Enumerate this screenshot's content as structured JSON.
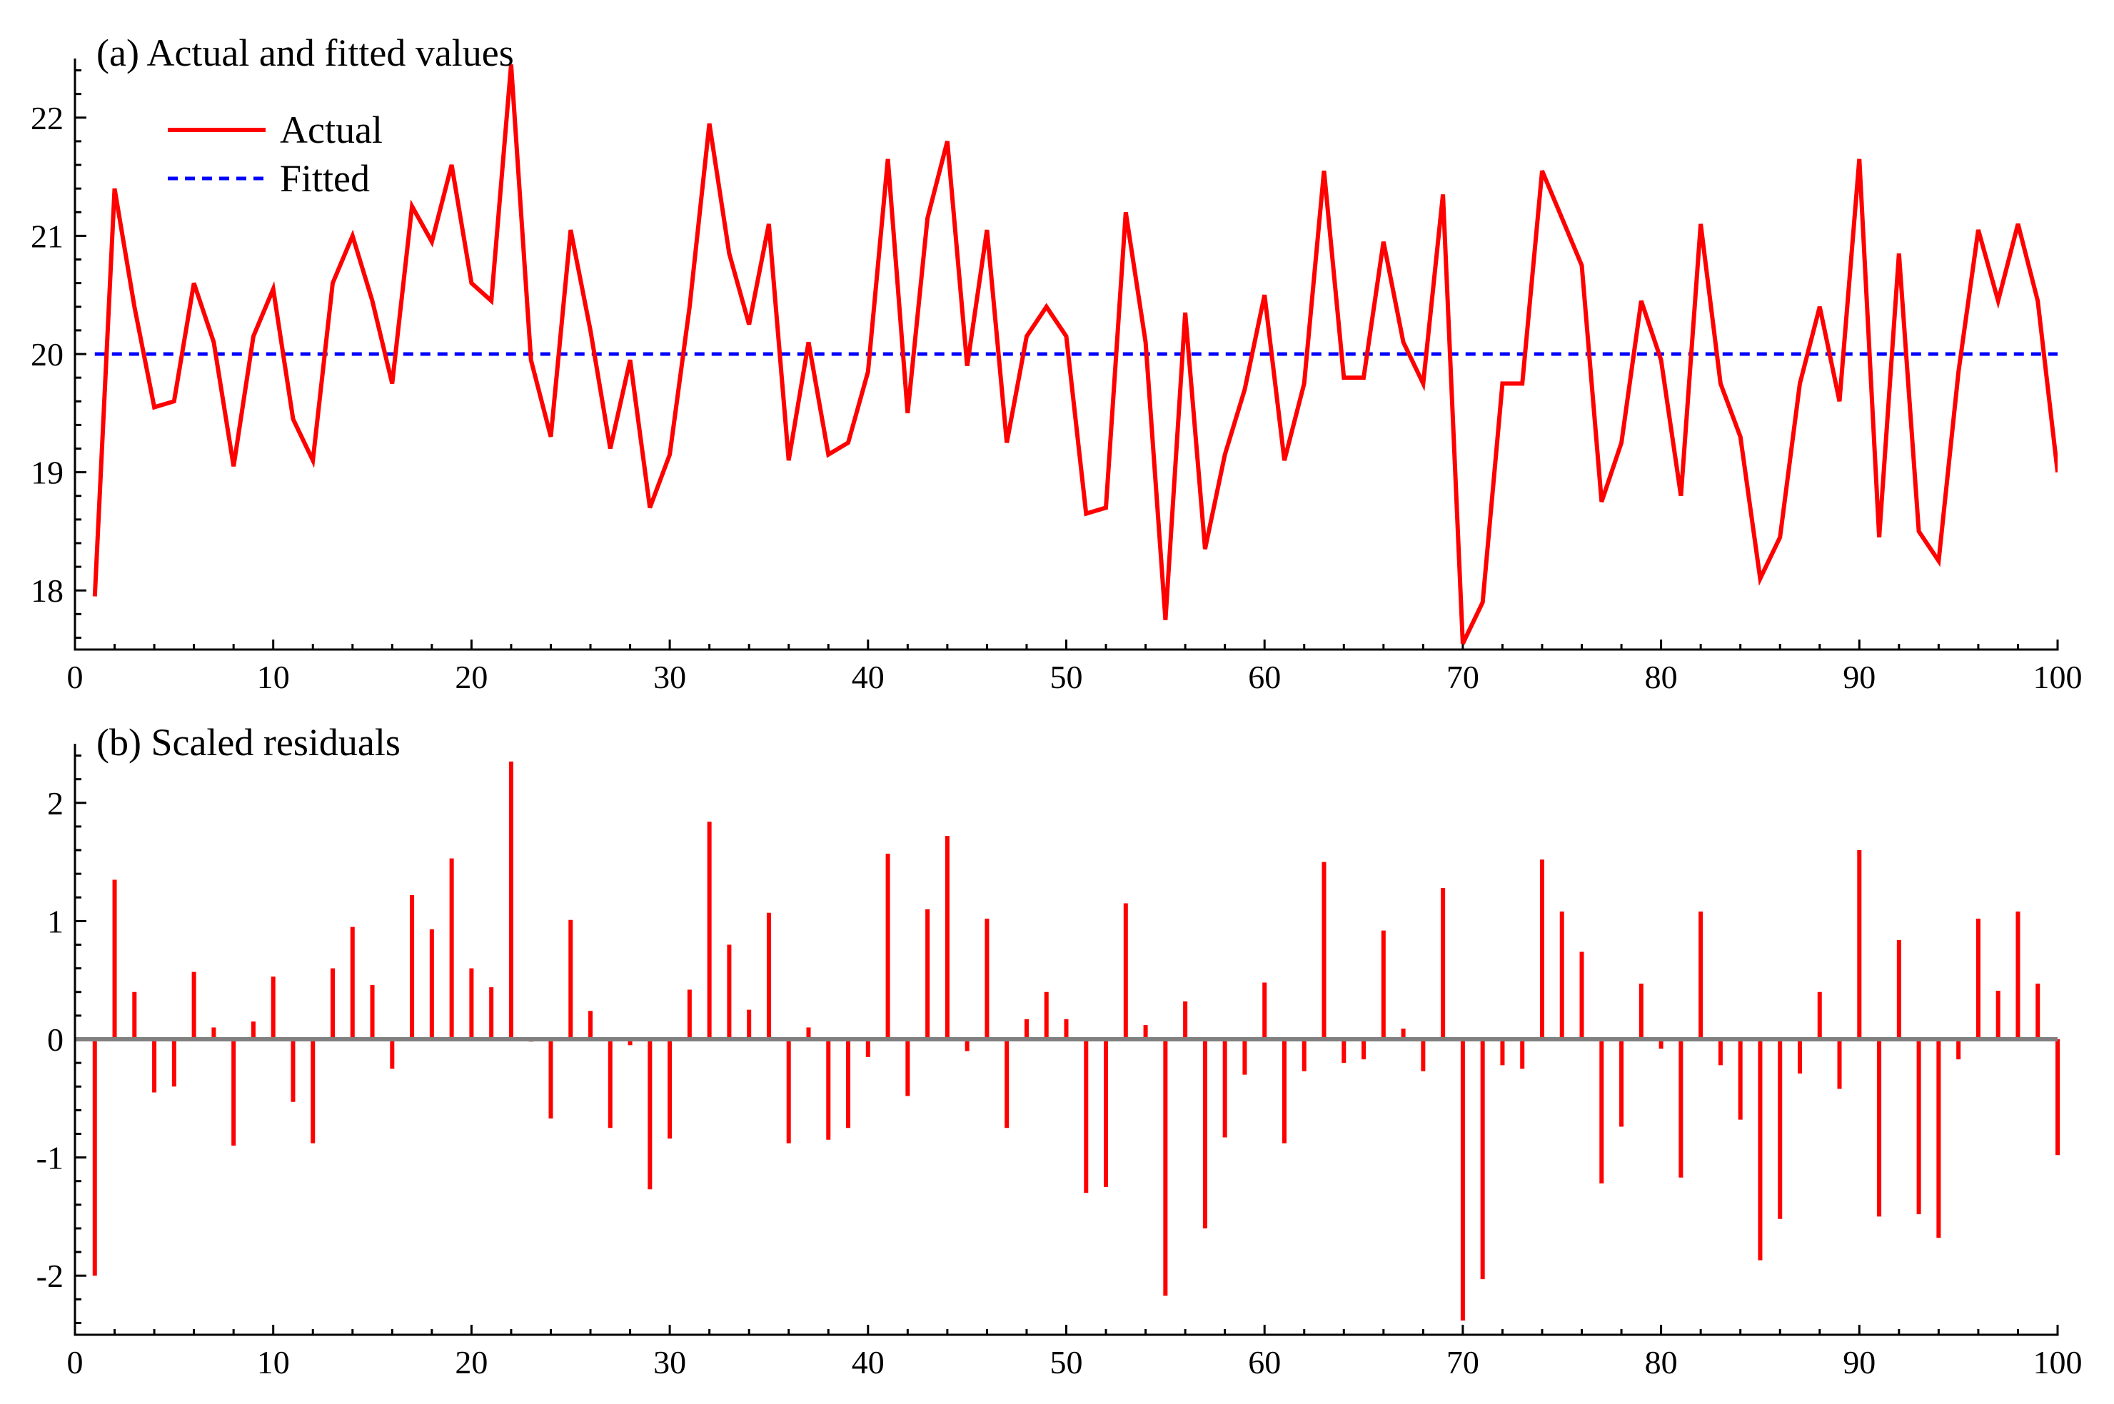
{
  "chart_data": [
    {
      "panel": "a",
      "type": "line",
      "title": "(a) Actual and fitted values",
      "xlabel": "",
      "ylabel": "",
      "xlim": [
        0,
        100
      ],
      "ylim": [
        17.5,
        22.5
      ],
      "xticks": [
        0,
        10,
        20,
        30,
        40,
        50,
        60,
        70,
        80,
        90,
        100
      ],
      "yticks": [
        18,
        19,
        20,
        21,
        22
      ],
      "legend_position": "top-left",
      "series": [
        {
          "name": "Actual",
          "color": "#ff0000",
          "style": "solid",
          "x": [
            1,
            2,
            3,
            4,
            5,
            6,
            7,
            8,
            9,
            10,
            11,
            12,
            13,
            14,
            15,
            16,
            17,
            18,
            19,
            20,
            21,
            22,
            23,
            24,
            25,
            26,
            27,
            28,
            29,
            30,
            31,
            32,
            33,
            34,
            35,
            36,
            37,
            38,
            39,
            40,
            41,
            42,
            43,
            44,
            45,
            46,
            47,
            48,
            49,
            50,
            51,
            52,
            53,
            54,
            55,
            56,
            57,
            58,
            59,
            60,
            61,
            62,
            63,
            64,
            65,
            66,
            67,
            68,
            69,
            70,
            71,
            72,
            73,
            74,
            75,
            76,
            77,
            78,
            79,
            80,
            81,
            82,
            83,
            84,
            85,
            86,
            87,
            88,
            89,
            90,
            91,
            92,
            93,
            94,
            95,
            96,
            97,
            98,
            99,
            100
          ],
          "values": [
            17.95,
            21.4,
            20.4,
            19.55,
            19.6,
            20.6,
            20.1,
            19.05,
            20.15,
            20.55,
            19.45,
            19.1,
            20.6,
            21.0,
            20.45,
            19.75,
            21.25,
            20.95,
            21.6,
            20.6,
            20.45,
            22.45,
            19.95,
            19.3,
            21.05,
            20.2,
            19.2,
            19.95,
            18.7,
            19.15,
            20.4,
            21.95,
            20.85,
            20.25,
            21.1,
            19.1,
            20.1,
            19.15,
            19.25,
            19.85,
            21.65,
            19.5,
            21.15,
            21.8,
            19.9,
            21.05,
            19.25,
            20.15,
            20.4,
            20.15,
            18.65,
            18.7,
            21.2,
            20.1,
            17.75,
            20.35,
            18.35,
            19.15,
            19.7,
            20.5,
            19.1,
            19.75,
            21.55,
            19.8,
            19.8,
            20.95,
            20.1,
            19.75,
            21.35,
            17.55,
            17.9,
            19.75,
            19.75,
            21.55,
            21.15,
            20.75,
            18.75,
            19.25,
            20.45,
            19.95,
            18.8,
            21.1,
            19.75,
            19.3,
            18.1,
            18.45,
            19.75,
            20.4,
            19.6,
            21.65,
            18.45,
            20.85,
            18.5,
            18.25,
            19.85,
            21.05,
            20.45,
            21.1,
            20.45,
            19.0
          ]
        },
        {
          "name": "Fitted",
          "color": "#0000ff",
          "style": "dashed",
          "x": [
            1,
            100
          ],
          "values": [
            20.0,
            20.0
          ]
        }
      ]
    },
    {
      "panel": "b",
      "type": "bar",
      "title": "(b) Scaled residuals",
      "xlabel": "",
      "ylabel": "",
      "xlim": [
        0,
        100
      ],
      "ylim": [
        -2.5,
        2.5
      ],
      "xticks": [
        0,
        10,
        20,
        30,
        40,
        50,
        60,
        70,
        80,
        90,
        100
      ],
      "yticks": [
        -2,
        -1,
        0,
        1,
        2
      ],
      "baseline_color": "#808080",
      "series": [
        {
          "name": "Scaled residuals",
          "color": "#ff0000",
          "x": [
            1,
            2,
            3,
            4,
            5,
            6,
            7,
            8,
            9,
            10,
            11,
            12,
            13,
            14,
            15,
            16,
            17,
            18,
            19,
            20,
            21,
            22,
            23,
            24,
            25,
            26,
            27,
            28,
            29,
            30,
            31,
            32,
            33,
            34,
            35,
            36,
            37,
            38,
            39,
            40,
            41,
            42,
            43,
            44,
            45,
            46,
            47,
            48,
            49,
            50,
            51,
            52,
            53,
            54,
            55,
            56,
            57,
            58,
            59,
            60,
            61,
            62,
            63,
            64,
            65,
            66,
            67,
            68,
            69,
            70,
            71,
            72,
            73,
            74,
            75,
            76,
            77,
            78,
            79,
            80,
            81,
            82,
            83,
            84,
            85,
            86,
            87,
            88,
            89,
            90,
            91,
            92,
            93,
            94,
            95,
            96,
            97,
            98,
            99,
            100
          ],
          "values": [
            -2.0,
            1.35,
            0.4,
            -0.45,
            -0.4,
            0.57,
            0.1,
            -0.9,
            0.15,
            0.53,
            -0.53,
            -0.88,
            0.6,
            0.95,
            0.46,
            -0.25,
            1.22,
            0.93,
            1.53,
            0.6,
            0.44,
            2.35,
            -0.02,
            -0.67,
            1.01,
            0.24,
            -0.75,
            -0.05,
            -1.27,
            -0.84,
            0.42,
            1.84,
            0.8,
            0.25,
            1.07,
            -0.88,
            0.1,
            -0.85,
            -0.75,
            -0.15,
            1.57,
            -0.48,
            1.1,
            1.72,
            -0.1,
            1.02,
            -0.75,
            0.17,
            0.4,
            0.17,
            -1.3,
            -1.25,
            1.15,
            0.12,
            -2.17,
            0.32,
            -1.6,
            -0.83,
            -0.3,
            0.48,
            -0.88,
            -0.27,
            1.5,
            -0.2,
            -0.17,
            0.92,
            0.09,
            -0.27,
            1.28,
            -2.38,
            -2.03,
            -0.22,
            -0.25,
            1.52,
            1.08,
            0.74,
            -1.22,
            -0.74,
            0.47,
            -0.08,
            -1.17,
            1.08,
            -0.22,
            -0.68,
            -1.87,
            -1.52,
            -0.29,
            0.4,
            -0.42,
            1.6,
            -1.5,
            0.84,
            -1.48,
            -1.68,
            -0.17,
            1.02,
            0.41,
            1.08,
            0.47,
            -0.98
          ]
        }
      ]
    }
  ]
}
